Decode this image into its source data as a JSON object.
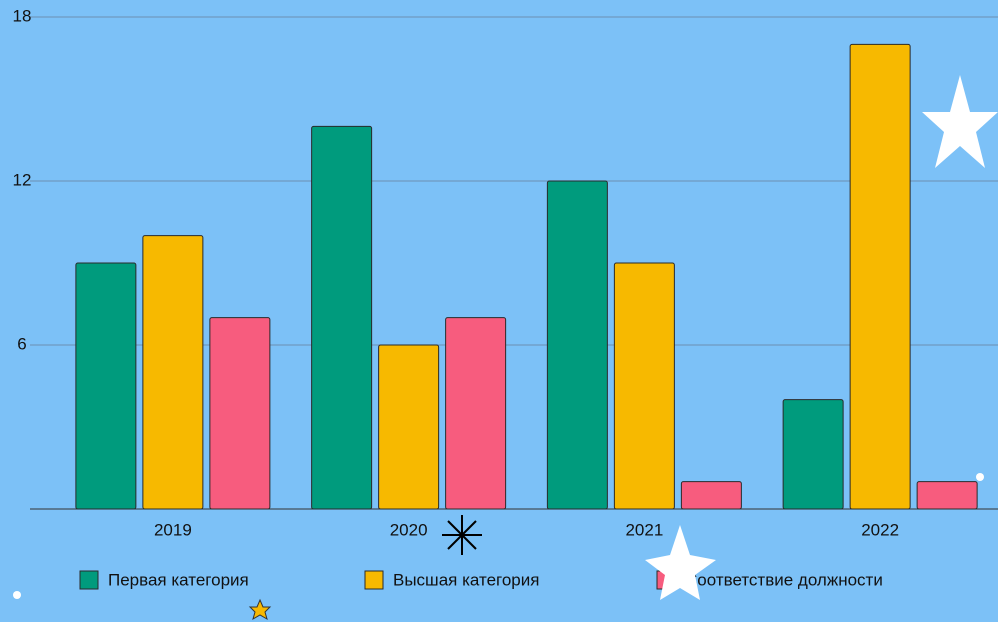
{
  "chart_data": {
    "type": "bar",
    "categories": [
      "2019",
      "2020",
      "2021",
      "2022"
    ],
    "series": [
      {
        "name": "Первая категория",
        "color": "#009b7d",
        "values": [
          9,
          14,
          12,
          4
        ]
      },
      {
        "name": "Высшая категория",
        "color": "#f7b900",
        "values": [
          10,
          6,
          9,
          17
        ]
      },
      {
        "name": "Соответствие должности",
        "color": "#f75c7e",
        "values": [
          7,
          7,
          1,
          1
        ]
      }
    ],
    "ylim": [
      0,
      18
    ],
    "yticks": [
      6,
      12,
      18
    ],
    "grid": true
  }
}
